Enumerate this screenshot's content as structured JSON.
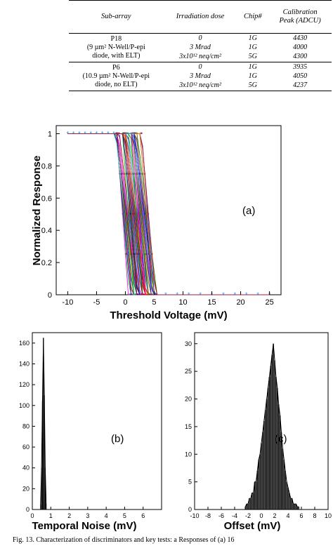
{
  "table": {
    "headers": [
      "Sub-array",
      "Irradiation dose",
      "Chip#",
      "Calibration",
      "Peak (ADCU)"
    ],
    "rows": [
      {
        "sub": "P18",
        "dose": "0",
        "chip": "1G",
        "peak": "4430"
      },
      {
        "sub": "(9 µm² N-Well/P-epi",
        "dose": "3 Mrad",
        "chip": "1G",
        "peak": "4000"
      },
      {
        "sub": "diode, with ELT)",
        "dose": "3x10¹² neq/cm²",
        "chip": "5G",
        "peak": "4300"
      },
      {
        "sub": "P6",
        "dose": "0",
        "chip": "1G",
        "peak": "3935"
      },
      {
        "sub": "(10.9 µm² N-Well/P-epi",
        "dose": "3 Mrad",
        "chip": "1G",
        "peak": "4050"
      },
      {
        "sub": "diode, no ELT)",
        "dose": "3x10¹² neq/cm²",
        "chip": "5G",
        "peak": "4237"
      }
    ]
  },
  "chart_data": [
    {
      "type": "line",
      "panel_label": "(a)",
      "xlabel": "Threshold Voltage (mV)",
      "ylabel": "Normalized Response",
      "xlim": [
        -12,
        27
      ],
      "ylim": [
        0,
        1.05
      ],
      "xticks": [
        "-10",
        "-5",
        "0",
        "5",
        "10",
        "15",
        "20",
        "25"
      ],
      "yticks": [
        "0",
        "0.2",
        "0.4",
        "0.6",
        "0.8",
        "1"
      ],
      "transition_range_mV": [
        -1.5,
        5.2
      ],
      "curve_count": 60,
      "series_colors": [
        "#ff00ff",
        "#00c000",
        "#0000ff",
        "#ff0000",
        "#00bfbf",
        "#8b4513",
        "#000080",
        "#ff8c00",
        "#008000",
        "#800080",
        "#1e90ff",
        "#cc0000"
      ],
      "legend": "none",
      "grid": false
    },
    {
      "type": "bar",
      "panel_label": "(b)",
      "xlabel": "Temporal Noise (mV)",
      "ylabel": "",
      "xlim": [
        0,
        7
      ],
      "ylim": [
        0,
        170
      ],
      "xticks": [
        "0",
        "1",
        "2",
        "3",
        "4",
        "5",
        "6"
      ],
      "yticks": [
        "0",
        "20",
        "40",
        "60",
        "80",
        "100",
        "120",
        "140",
        "160"
      ],
      "x": [
        0.45,
        0.5,
        0.55,
        0.6,
        0.65,
        0.7,
        0.75
      ],
      "values": [
        5,
        40,
        105,
        165,
        110,
        40,
        6
      ]
    },
    {
      "type": "bar",
      "panel_label": "(c)",
      "xlabel": "Offset (mV)",
      "ylabel": "",
      "xlim": [
        -10,
        10
      ],
      "ylim": [
        0,
        32
      ],
      "xticks": [
        "-10",
        "-8",
        "-6",
        "-4",
        "-2",
        "0",
        "2",
        "4",
        "6",
        "8",
        "10"
      ],
      "yticks": [
        "0",
        "5",
        "10",
        "15",
        "20",
        "25",
        "30"
      ],
      "x": [
        -2.4,
        -2.2,
        -2.0,
        -1.8,
        -1.6,
        -1.4,
        -1.2,
        -1.0,
        -0.8,
        -0.6,
        -0.4,
        -0.2,
        0.0,
        0.2,
        0.4,
        0.6,
        0.8,
        1.0,
        1.2,
        1.4,
        1.6,
        1.8,
        2.0,
        2.2,
        2.4,
        2.6,
        2.8,
        3.0,
        3.2,
        3.4,
        3.6,
        3.8,
        4.0,
        4.2,
        4.4,
        4.6,
        4.8,
        5.0,
        5.2,
        5.4,
        5.6
      ],
      "values": [
        0.5,
        1,
        1,
        2,
        2,
        3,
        3,
        5,
        5,
        7,
        9,
        10,
        12,
        14,
        16,
        18,
        20,
        22,
        24,
        26,
        28,
        30,
        27,
        24,
        22,
        19,
        17,
        14,
        11,
        9,
        7,
        5,
        4,
        3,
        2,
        2,
        1,
        1,
        1,
        0.5,
        0.5
      ]
    }
  ],
  "caption": "Fig. 13.   Characterization of discriminators and key tests: a Responses of (a) 16"
}
